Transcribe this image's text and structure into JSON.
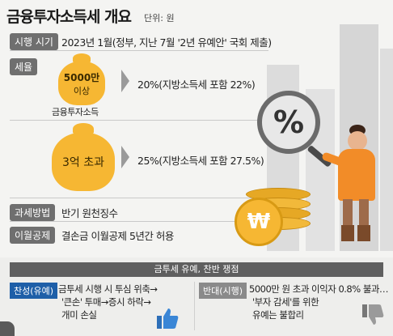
{
  "header": {
    "title": "금융투자소득세 개요",
    "unit": "단위: 원"
  },
  "rows": {
    "implementation": {
      "label": "시행 시기",
      "text": "2023년 1월(정부, 지난 7월 '2년 유예안' 국회 제출)"
    },
    "tax_rate": {
      "label": "세율",
      "bag_small": {
        "line1": "5000만",
        "line2": "이상",
        "caption": "금융투자소득"
      },
      "rate_small": "20%(지방소득세 포함 22%)",
      "bag_large": {
        "text": "3억 초과"
      },
      "rate_large": "25%(지방소득세 포함 27.5%)"
    },
    "taxation_method": {
      "label": "과세방법",
      "text": "반기 원천징수"
    },
    "carryover": {
      "label": "이월공제",
      "text": "결손금 이월공제 5년간 허용"
    }
  },
  "illustration": {
    "magnifier_symbol": "%",
    "coin_symbol": "₩"
  },
  "dispute": {
    "title": "금투세 유예, 찬반 쟁점",
    "pro": {
      "label": "찬성(유예)",
      "lines": [
        "금투세 시행 시 투심 위축→",
        "'큰손' 투매→증시 하락→",
        "개미 손실"
      ],
      "icon": "thumbs-up-icon"
    },
    "con": {
      "label": "반대(시행)",
      "lines": [
        "5000만 원 초과 이익자 0.8% 불과…",
        "'부자 감세'를 위한",
        "유예는 불합리"
      ],
      "icon": "thumbs-down-icon"
    }
  },
  "colors": {
    "accent_blue": "#1e5fa8",
    "gold": "#f6b733",
    "orange_shirt": "#f28c28",
    "label_gray": "#6f6f6f"
  }
}
